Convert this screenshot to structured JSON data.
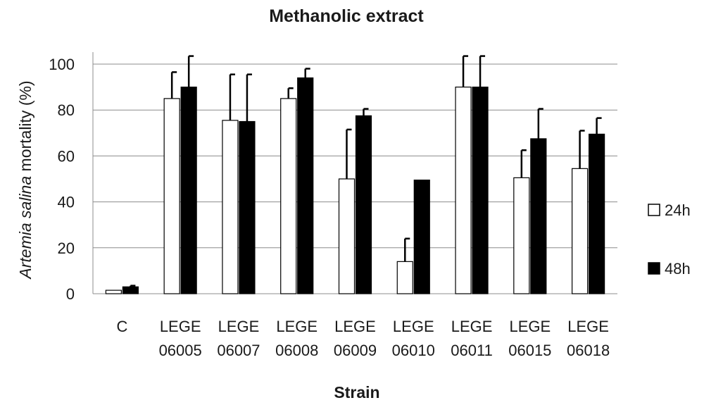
{
  "chart_data": {
    "type": "bar",
    "title": "Methanolic extract",
    "xlabel": "Strain",
    "ylabel_italic": "Artemia salina",
    "ylabel_rest": " mortality (%)",
    "categories": [
      [
        "C",
        ""
      ],
      [
        "LEGE",
        "06005"
      ],
      [
        "LEGE",
        "06007"
      ],
      [
        "LEGE",
        "06008"
      ],
      [
        "LEGE",
        "06009"
      ],
      [
        "LEGE",
        "06010"
      ],
      [
        "LEGE",
        "06011"
      ],
      [
        "LEGE",
        "06015"
      ],
      [
        "LEGE",
        "06018"
      ]
    ],
    "series": [
      {
        "name": "24h",
        "color": "#ffffff",
        "values": [
          1.5,
          85,
          75.5,
          85,
          50,
          14,
          90,
          50.5,
          54.5
        ],
        "errors": [
          0,
          11.5,
          20,
          4.5,
          21.5,
          10,
          13.5,
          12,
          16.5
        ]
      },
      {
        "name": "48h",
        "color": "#000000",
        "values": [
          3,
          90,
          75,
          94,
          77.5,
          49.5,
          90,
          67.5,
          69.5
        ],
        "errors": [
          0.5,
          13.5,
          20.5,
          4,
          3,
          0,
          13.5,
          13,
          7
        ]
      }
    ],
    "ylim": [
      0,
      100
    ],
    "yticks": [
      0,
      20,
      40,
      60,
      80,
      100
    ],
    "grid": true,
    "legend": "right"
  }
}
